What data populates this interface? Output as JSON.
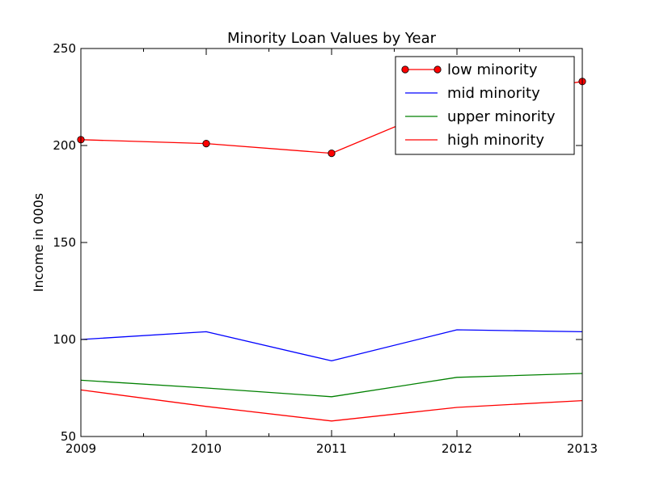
{
  "chart_data": {
    "type": "line",
    "title": "Minority Loan Values by Year",
    "xlabel": "",
    "ylabel": "Income in 000s",
    "x": [
      2009,
      2010,
      2011,
      2012,
      2013
    ],
    "xlim": [
      2009,
      2013
    ],
    "ylim": [
      50,
      250
    ],
    "xticks": [
      2009,
      2010,
      2011,
      2012,
      2013
    ],
    "yticks": [
      50,
      100,
      150,
      200,
      250
    ],
    "grid": false,
    "legend_position": "top-right",
    "series": [
      {
        "name": "low minority",
        "values": [
          203,
          201,
          196,
          223,
          233
        ],
        "color": "#ff0000",
        "marker": "circle"
      },
      {
        "name": "mid minority",
        "values": [
          100,
          104,
          89,
          105,
          104
        ],
        "color": "#0000ff",
        "marker": "none"
      },
      {
        "name": "upper minority",
        "values": [
          79,
          75,
          70.5,
          80.5,
          82.5
        ],
        "color": "#008000",
        "marker": "none"
      },
      {
        "name": "high minority",
        "values": [
          74,
          65.5,
          58,
          65,
          68.5
        ],
        "color": "#ff0000",
        "marker": "none"
      }
    ]
  }
}
